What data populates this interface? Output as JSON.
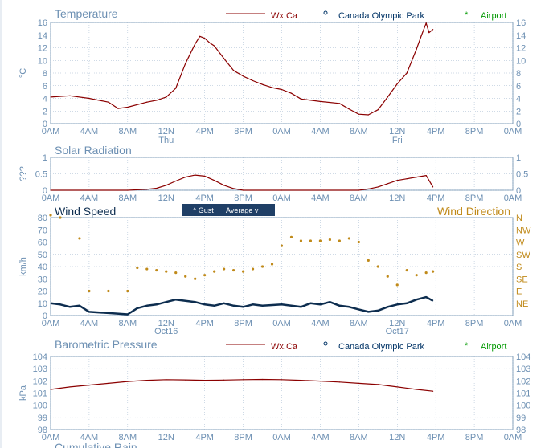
{
  "colors": {
    "axis": "#7f9db9",
    "grid": "#9fb5cc",
    "title": "#6d90b3",
    "wxca": "#8b0000",
    "olympic": "#003366",
    "airport": "#009900",
    "wind_speed": "#0d2d4f",
    "wind_dir": "#c08a1a",
    "button_bg": "#1f3f66"
  },
  "legend": {
    "wxca": "Wx.Ca",
    "olympic": "Canada Olympic Park",
    "airport": "Airport"
  },
  "time_axis": {
    "labels": [
      "0AM",
      "4AM",
      "8AM",
      "12N",
      "4PM",
      "8PM",
      "0AM",
      "4AM",
      "8AM",
      "12N",
      "4PM",
      "8PM",
      "0AM"
    ]
  },
  "wind_toggle": {
    "gust_label": "^ Gust",
    "average_label": "Average v"
  },
  "cutoff_title": "Cumulative Rain",
  "chart_data": [
    {
      "type": "line",
      "title": "Temperature",
      "ylabel": "°C",
      "ylim": [
        0,
        16
      ],
      "yticks": [
        "0",
        "2",
        "4",
        "6",
        "8",
        "10",
        "12",
        "14",
        "16"
      ],
      "day_labels": [
        {
          "at_hour": 12,
          "label": "Thu"
        },
        {
          "at_hour": 36,
          "label": "Fri"
        }
      ],
      "series": [
        {
          "name": "Wx.Ca",
          "x": [
            0,
            2,
            4,
            6,
            7,
            8,
            10,
            11,
            12,
            13,
            14,
            15,
            15.5,
            16,
            16.5,
            17,
            18,
            19,
            20,
            21,
            22,
            23,
            24,
            25,
            26,
            28,
            30,
            31,
            32,
            33,
            34,
            35,
            36,
            37,
            38,
            38.5,
            39,
            39.3,
            39.7
          ],
          "y": [
            4.2,
            4.4,
            4.0,
            3.4,
            2.4,
            2.6,
            3.4,
            3.7,
            4.2,
            5.6,
            9.5,
            12.6,
            13.8,
            13.5,
            12.8,
            12.3,
            10.3,
            8.4,
            7.5,
            6.8,
            6.2,
            5.7,
            5.4,
            4.8,
            3.9,
            3.5,
            3.2,
            2.3,
            1.5,
            1.4,
            2.2,
            4.2,
            6.3,
            8.0,
            11.8,
            13.9,
            15.9,
            14.4,
            14.9
          ]
        }
      ]
    },
    {
      "type": "line",
      "title": "Solar Radiation",
      "ylabel": "???",
      "ylim": [
        0,
        1
      ],
      "yticks": [
        "0",
        "0.5",
        "1"
      ],
      "series": [
        {
          "name": "Wx.Ca",
          "x": [
            0,
            8,
            10,
            11,
            12,
            13,
            14,
            15,
            16,
            17,
            18,
            19,
            20,
            24,
            32,
            33,
            34,
            35,
            36,
            37,
            38,
            39,
            39.5,
            39.7
          ],
          "y": [
            0,
            0,
            0.03,
            0.06,
            0.15,
            0.28,
            0.4,
            0.46,
            0.43,
            0.3,
            0.15,
            0.05,
            0,
            0,
            0,
            0.04,
            0.1,
            0.2,
            0.3,
            0.35,
            0.4,
            0.45,
            0.2,
            0.1
          ]
        }
      ]
    },
    {
      "type": "line",
      "title": "Wind Speed",
      "ylabel": "km/h",
      "ylim": [
        0,
        80
      ],
      "yticks": [
        "0",
        "10",
        "20",
        "30",
        "40",
        "50",
        "60",
        "70",
        "80"
      ],
      "right_title": "Wind Direction",
      "right_ticks": [
        "NE",
        "E",
        "SE",
        "S",
        "SW",
        "W",
        "NW",
        "N"
      ],
      "day_labels": [
        {
          "at_hour": 12,
          "label": "Oct16"
        },
        {
          "at_hour": 36,
          "label": "Oct17"
        }
      ],
      "series": [
        {
          "name": "Wind Speed",
          "x": [
            0,
            1,
            2,
            3,
            4,
            6,
            8,
            9,
            10,
            11,
            12,
            13,
            14,
            15,
            16,
            17,
            18,
            19,
            20,
            21,
            22,
            24,
            25,
            26,
            27,
            28,
            29,
            30,
            31,
            32,
            33,
            34,
            35,
            36,
            37,
            38,
            39,
            39.7
          ],
          "y": [
            10,
            9,
            7,
            8,
            3,
            2,
            1,
            6,
            8,
            9,
            11,
            13,
            12,
            11,
            9,
            8,
            10,
            8,
            7,
            9,
            8,
            9,
            8,
            7,
            10,
            9,
            11,
            8,
            7,
            5,
            3,
            4,
            7,
            9,
            10,
            13,
            15,
            12
          ]
        },
        {
          "name": "Wind Direction",
          "x": [
            0,
            1,
            2,
            3,
            4,
            6,
            8,
            9,
            10,
            11,
            12,
            13,
            14,
            15,
            16,
            17,
            18,
            19,
            20,
            21,
            22,
            23,
            24,
            25,
            26,
            27,
            28,
            29,
            30,
            31,
            32,
            33,
            34,
            35,
            36,
            37,
            38,
            39,
            39.7
          ],
          "y": [
            82,
            80,
            0,
            63,
            20,
            20,
            20,
            39,
            38,
            37,
            36,
            35,
            32,
            30,
            33,
            36,
            38,
            37,
            36,
            38,
            40,
            42,
            57,
            64,
            61,
            61,
            61,
            62,
            61,
            63,
            60,
            45,
            40,
            32,
            25,
            37,
            33,
            35,
            36
          ]
        }
      ]
    },
    {
      "type": "line",
      "title": "Barometric Pressure",
      "ylabel": "kPa",
      "ylim": [
        98,
        104
      ],
      "yticks": [
        "98",
        "99",
        "100",
        "101",
        "102",
        "103",
        "104"
      ],
      "series": [
        {
          "name": "Wx.Ca",
          "x": [
            0,
            2,
            4,
            6,
            8,
            10,
            12,
            14,
            16,
            18,
            20,
            22,
            24,
            26,
            28,
            30,
            32,
            34,
            36,
            38,
            39.7
          ],
          "y": [
            101.3,
            101.5,
            101.65,
            101.8,
            101.95,
            102.05,
            102.1,
            102.08,
            102.05,
            102.07,
            102.1,
            102.12,
            102.1,
            102.05,
            101.98,
            101.9,
            101.8,
            101.7,
            101.5,
            101.3,
            101.15
          ]
        }
      ]
    }
  ]
}
